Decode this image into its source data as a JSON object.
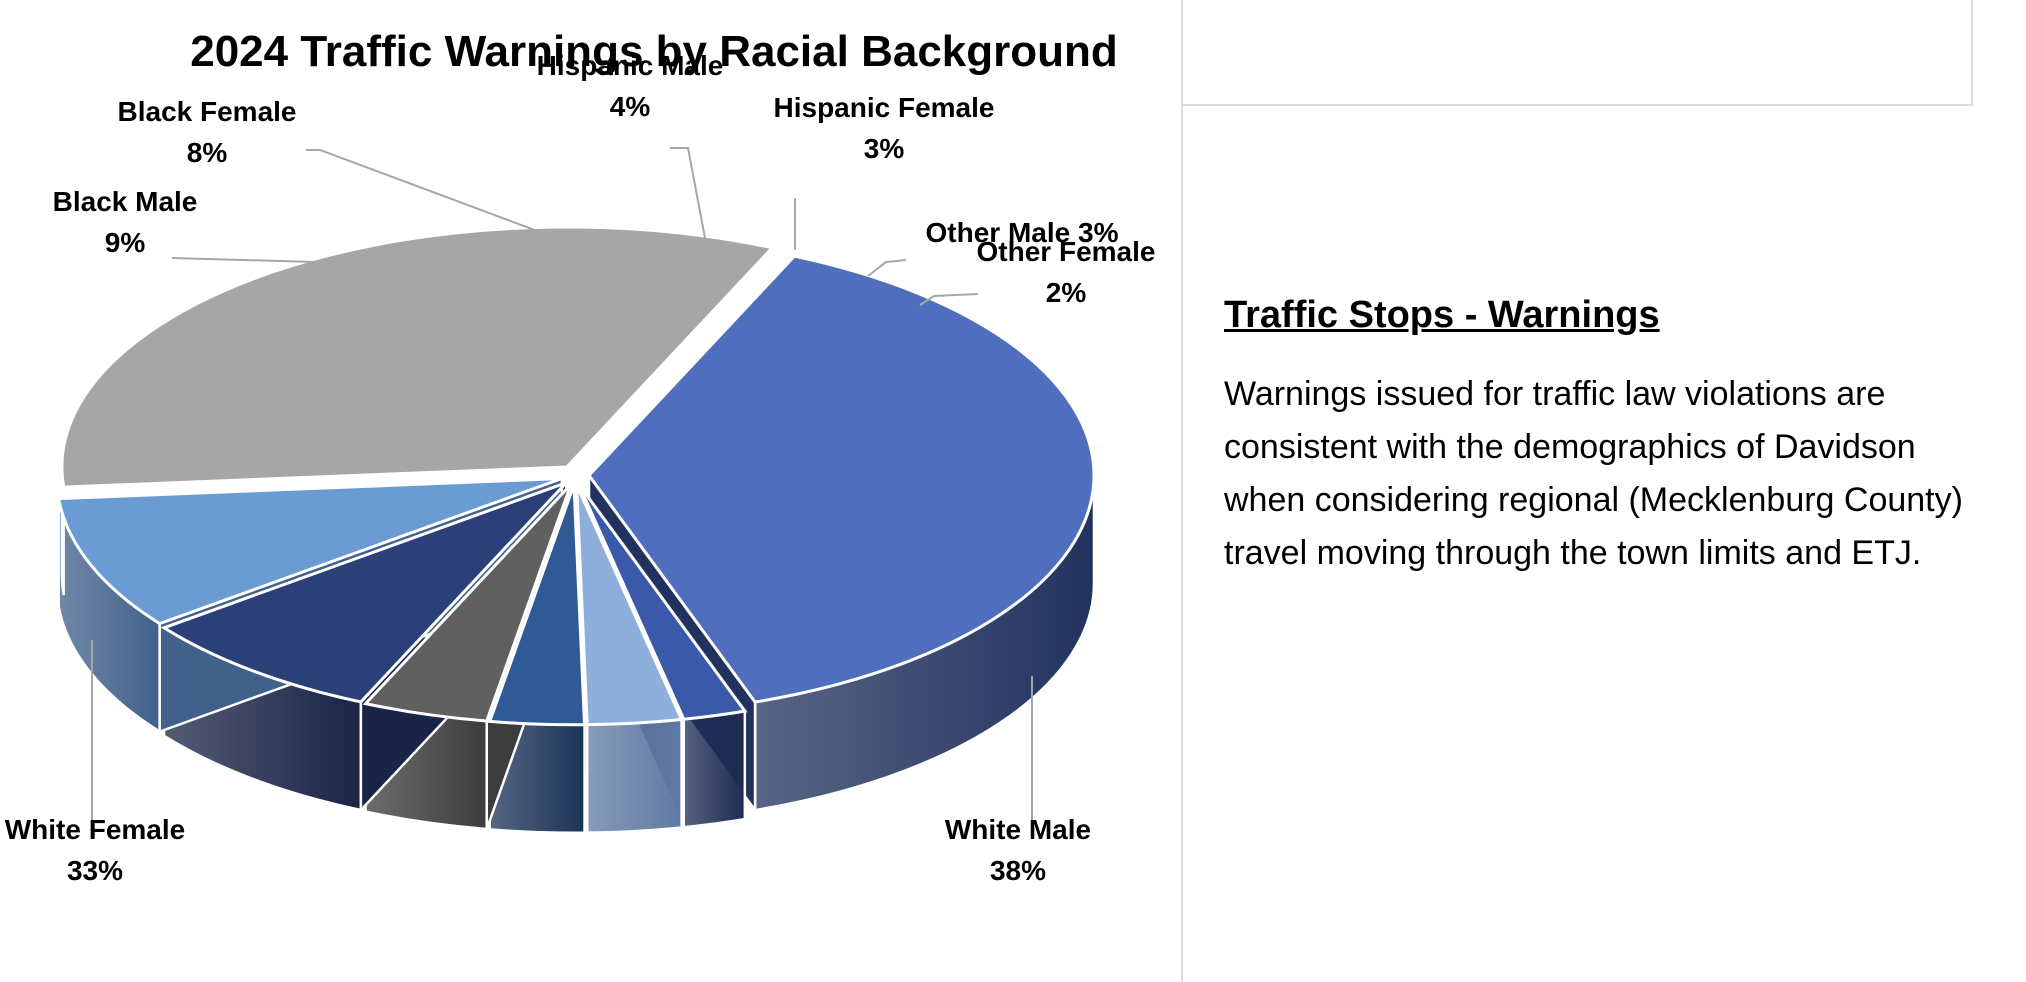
{
  "chart_data": {
    "type": "pie",
    "title": "2024 Traffic Warnings by Racial Background",
    "slices": [
      {
        "label": "White Male",
        "value": 38,
        "display": "38%",
        "color": "#4f6fbe",
        "side": "#22325e"
      },
      {
        "label": "Other Female",
        "value": 2,
        "display": "2%",
        "color": "#3a59a8",
        "side": "#1e2c54"
      },
      {
        "label": "Other Male",
        "value": 3,
        "display": "3%",
        "color": "#8eaedc",
        "side": "#5f7aa3"
      },
      {
        "label": "Hispanic Female",
        "value": 3,
        "display": "3%",
        "color": "#2f5a95",
        "side": "#1c3358"
      },
      {
        "label": "Hispanic Male",
        "value": 4,
        "display": "4%",
        "color": "#606060",
        "side": "#3c3c3c"
      },
      {
        "label": "Black Female",
        "value": 8,
        "display": "8%",
        "color": "#2b3f78",
        "side": "#1a2447"
      },
      {
        "label": "Black Male",
        "value": 9,
        "display": "9%",
        "color": "#6a9bd3",
        "side": "#41618a"
      },
      {
        "label": "White Female",
        "value": 33,
        "display": "33%",
        "color": "#a6a6a6",
        "side": "#7a7a7a"
      }
    ]
  },
  "panel": {
    "heading": "Traffic Stops - Warnings",
    "body": "Warnings issued for traffic law violations are consistent with the demographics of Davidson when considering regional (Mecklenburg County) travel moving through the town limits and ETJ."
  }
}
